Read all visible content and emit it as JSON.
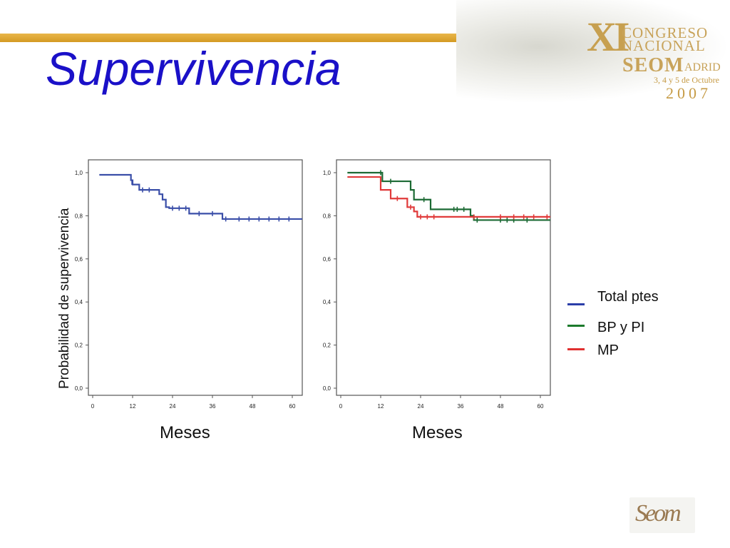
{
  "slide": {
    "title": "Supervivencia"
  },
  "logo": {
    "roman": "XI",
    "line1": "CONGRESO",
    "line2": "NACIONAL",
    "brand": "SEOM",
    "city": "ADRID",
    "dates": "3, 4 y 5 de Octubre",
    "year": "2007"
  },
  "footer_logo": {
    "text": "Seom"
  },
  "legend": {
    "items": [
      {
        "label": "Total ptes",
        "color": "#2b3ea8"
      },
      {
        "label": "BP y PI",
        "color": "#1c7a2c"
      },
      {
        "label": "MP",
        "color": "#e03030"
      }
    ]
  },
  "chart_data": [
    {
      "type": "line",
      "step": true,
      "xlabel": "Meses",
      "ylabel": "Probabilidad de supervivencia",
      "xlim": [
        0,
        63
      ],
      "ylim": [
        0,
        1
      ],
      "xticks": [
        "0",
        "12",
        "24",
        "36",
        "48",
        "60"
      ],
      "yticks": [
        "0,0",
        "0,2",
        "0,4",
        "0,6",
        "0,8",
        "1,0"
      ],
      "series": [
        {
          "name": "Total ptes",
          "color": "#3a4ea8",
          "x": [
            2,
            11,
            11.5,
            12,
            14,
            19,
            20,
            21,
            22,
            23,
            29,
            39,
            63
          ],
          "y": [
            0.99,
            0.99,
            0.965,
            0.945,
            0.92,
            0.92,
            0.9,
            0.875,
            0.84,
            0.835,
            0.81,
            0.785,
            0.785
          ],
          "censored": [
            [
              11.8,
              0.955
            ],
            [
              15,
              0.92
            ],
            [
              17,
              0.92
            ],
            [
              24,
              0.835
            ],
            [
              26,
              0.835
            ],
            [
              28,
              0.835
            ],
            [
              32,
              0.81
            ],
            [
              36,
              0.81
            ],
            [
              40,
              0.785
            ],
            [
              44,
              0.785
            ],
            [
              47,
              0.785
            ],
            [
              50,
              0.785
            ],
            [
              53,
              0.785
            ],
            [
              56,
              0.785
            ],
            [
              59,
              0.785
            ]
          ]
        }
      ]
    },
    {
      "type": "line",
      "step": true,
      "xlabel": "Meses",
      "xlim": [
        0,
        63
      ],
      "ylim": [
        0,
        1
      ],
      "xticks": [
        "0",
        "12",
        "24",
        "36",
        "48",
        "60"
      ],
      "yticks": [
        "0,0",
        "0,2",
        "0,4",
        "0,6",
        "0,8",
        "1,0"
      ],
      "series": [
        {
          "name": "BP y PI",
          "color": "#1c6a34",
          "x": [
            2,
            12,
            12.5,
            21,
            22,
            27,
            39,
            40,
            63
          ],
          "y": [
            1.0,
            1.0,
            0.96,
            0.92,
            0.875,
            0.83,
            0.8,
            0.78,
            0.78
          ],
          "censored": [
            [
              12,
              1.0
            ],
            [
              15,
              0.96
            ],
            [
              25,
              0.875
            ],
            [
              34,
              0.83
            ],
            [
              35,
              0.83
            ],
            [
              37,
              0.83
            ],
            [
              41,
              0.78
            ],
            [
              48,
              0.78
            ],
            [
              50,
              0.78
            ],
            [
              52,
              0.78
            ],
            [
              56,
              0.78
            ]
          ]
        },
        {
          "name": "MP",
          "color": "#e03a3a",
          "x": [
            2,
            11,
            12,
            15,
            19,
            20,
            22,
            23,
            63
          ],
          "y": [
            0.98,
            0.98,
            0.92,
            0.88,
            0.88,
            0.84,
            0.82,
            0.795,
            0.795
          ],
          "censored": [
            [
              17,
              0.88
            ],
            [
              21,
              0.84
            ],
            [
              24,
              0.795
            ],
            [
              26,
              0.795
            ],
            [
              28,
              0.795
            ],
            [
              40,
              0.795
            ],
            [
              48,
              0.795
            ],
            [
              52,
              0.795
            ],
            [
              55,
              0.795
            ],
            [
              58,
              0.795
            ],
            [
              62,
              0.795
            ]
          ]
        }
      ]
    }
  ]
}
